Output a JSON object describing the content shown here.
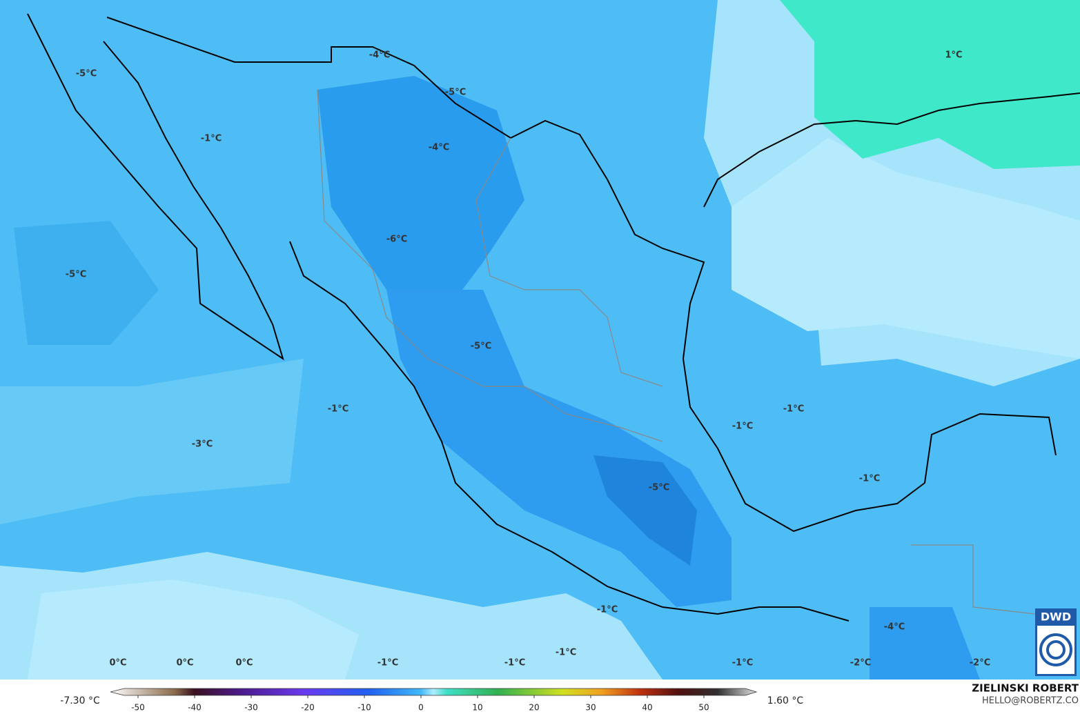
{
  "map": {
    "labels": [
      "-5°C",
      "-1°C",
      "-5°C",
      "-4°C",
      "-5°C",
      "-4°C",
      "-6°C",
      "-5°C",
      "1°C",
      "-1°C",
      "-3°C",
      "-1°C",
      "-1°C",
      "-1°C",
      "-5°C",
      "-1°C",
      "-4°C",
      "0°C",
      "0°C",
      "0°C",
      "-1°C",
      "-1°C",
      "-1°C",
      "-1°C",
      "-2°C",
      "-2°C"
    ]
  },
  "colorbar": {
    "min_label": "-7.30 °C",
    "max_label": "1.60 °C",
    "ticks": [
      -50,
      -40,
      -30,
      -20,
      -10,
      0,
      10,
      20,
      30,
      40,
      50
    ]
  },
  "credit": {
    "author": "ZIELINSKI ROBERT",
    "email": "HELLO@ROBERTZ.CO"
  },
  "logo": "DWD"
}
